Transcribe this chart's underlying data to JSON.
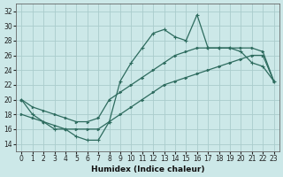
{
  "xlabel": "Humidex (Indice chaleur)",
  "bg_color": "#cce8e8",
  "grid_color": "#aacccc",
  "line_color": "#2d6b5e",
  "xlim": [
    -0.5,
    23.5
  ],
  "ylim": [
    13,
    33
  ],
  "xticks": [
    0,
    1,
    2,
    3,
    4,
    5,
    6,
    7,
    8,
    9,
    10,
    11,
    12,
    13,
    14,
    15,
    16,
    17,
    18,
    19,
    20,
    21,
    22,
    23
  ],
  "yticks": [
    14,
    16,
    18,
    20,
    22,
    24,
    26,
    28,
    30,
    32
  ],
  "line1_x": [
    0,
    1,
    2,
    3,
    4,
    5,
    6,
    7,
    8,
    9,
    10,
    11,
    12,
    13,
    14,
    15,
    16,
    17,
    18,
    19,
    20,
    21,
    22,
    23
  ],
  "line1_y": [
    20,
    18,
    17,
    16,
    16,
    15,
    14.5,
    14.5,
    17,
    22.5,
    25,
    27,
    29,
    29.5,
    28.5,
    28,
    31.5,
    27,
    27,
    27,
    26.5,
    25,
    24.5,
    22.5
  ],
  "line2_x": [
    0,
    1,
    2,
    3,
    4,
    5,
    6,
    7,
    8,
    9,
    10,
    11,
    12,
    13,
    14,
    15,
    16,
    17,
    18,
    19,
    20,
    21,
    22,
    23
  ],
  "line2_y": [
    20,
    19,
    18.5,
    18,
    17.5,
    17,
    17,
    17.5,
    20,
    21,
    22,
    23,
    24,
    25,
    26,
    26.5,
    27,
    27,
    27,
    27,
    27,
    27,
    26.5,
    22.5
  ],
  "line3_x": [
    0,
    1,
    2,
    3,
    4,
    5,
    6,
    7,
    8,
    9,
    10,
    11,
    12,
    13,
    14,
    15,
    16,
    17,
    18,
    19,
    20,
    21,
    22,
    23
  ],
  "line3_y": [
    18,
    17.5,
    17,
    16.5,
    16,
    16,
    16,
    16,
    17,
    18,
    19,
    20,
    21,
    22,
    22.5,
    23,
    23.5,
    24,
    24.5,
    25,
    25.5,
    26,
    26,
    22.5
  ]
}
